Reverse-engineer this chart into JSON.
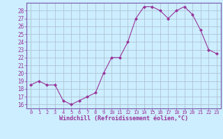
{
  "x": [
    0,
    1,
    2,
    3,
    4,
    5,
    6,
    7,
    8,
    9,
    10,
    11,
    12,
    13,
    14,
    15,
    16,
    17,
    18,
    19,
    20,
    21,
    22,
    23
  ],
  "y": [
    18.5,
    19.0,
    18.5,
    18.5,
    16.5,
    16.0,
    16.5,
    17.0,
    17.5,
    20.0,
    22.0,
    22.0,
    24.0,
    27.0,
    28.5,
    28.5,
    28.0,
    27.0,
    28.0,
    28.5,
    27.5,
    25.5,
    23.0,
    22.5
  ],
  "xlim": [
    -0.5,
    23.5
  ],
  "ylim": [
    15.5,
    29.0
  ],
  "yticks": [
    16,
    17,
    18,
    19,
    20,
    21,
    22,
    23,
    24,
    25,
    26,
    27,
    28
  ],
  "xtick_labels": [
    "0",
    "1",
    "2",
    "3",
    "4",
    "5",
    "6",
    "7",
    "8",
    "9",
    "10",
    "11",
    "12",
    "13",
    "14",
    "15",
    "16",
    "17",
    "18",
    "19",
    "20",
    "21",
    "22",
    "23"
  ],
  "xlabel": "Windchill (Refroidissement éolien,°C)",
  "line_color": "#993399",
  "marker": "D",
  "marker_size": 2.0,
  "bg_color": "#cceeff",
  "grid_color": "#aabbcc",
  "spine_color": "#7755aa"
}
